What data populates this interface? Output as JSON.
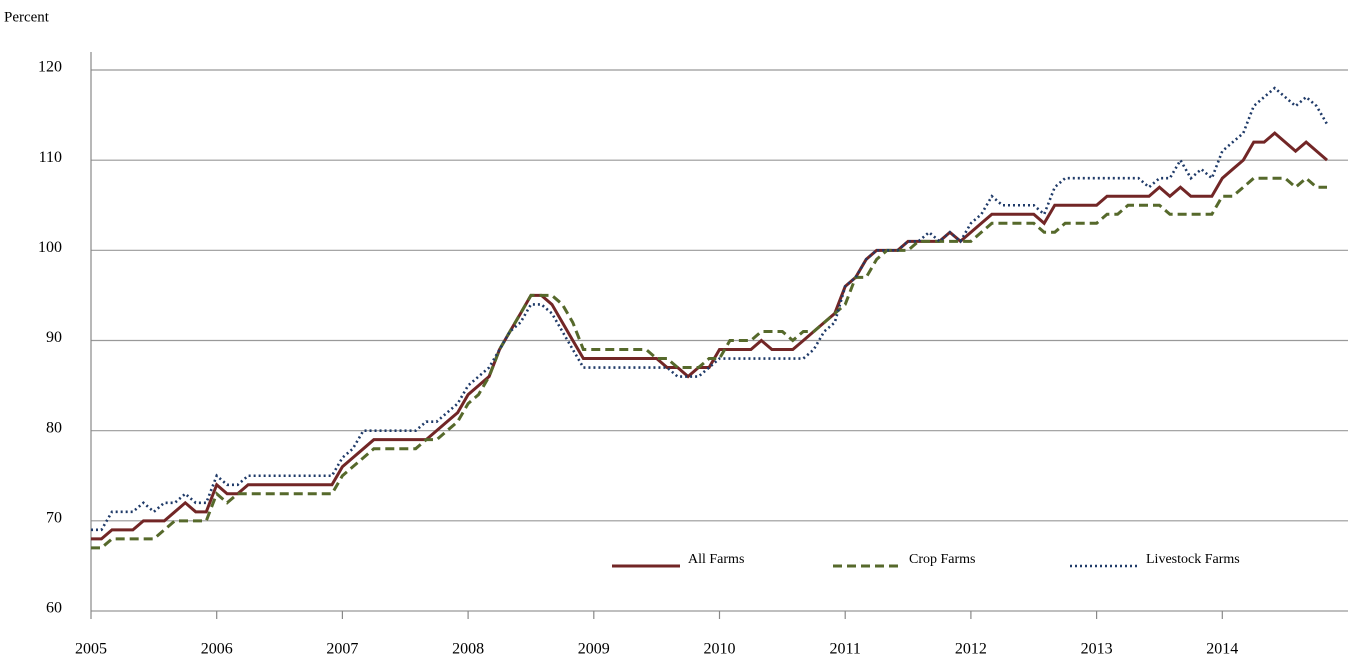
{
  "chart_data": {
    "type": "line",
    "y_label": "Percent",
    "x": [
      2005,
      2005.083,
      2005.167,
      2005.25,
      2005.333,
      2005.417,
      2005.5,
      2005.583,
      2005.667,
      2005.75,
      2005.833,
      2005.917,
      2006,
      2006.083,
      2006.167,
      2006.25,
      2006.333,
      2006.417,
      2006.5,
      2006.583,
      2006.667,
      2006.75,
      2006.833,
      2006.917,
      2007,
      2007.083,
      2007.167,
      2007.25,
      2007.333,
      2007.417,
      2007.5,
      2007.583,
      2007.667,
      2007.75,
      2007.833,
      2007.917,
      2008,
      2008.083,
      2008.167,
      2008.25,
      2008.333,
      2008.417,
      2008.5,
      2008.583,
      2008.667,
      2008.75,
      2008.833,
      2008.917,
      2009,
      2009.083,
      2009.167,
      2009.25,
      2009.333,
      2009.417,
      2009.5,
      2009.583,
      2009.667,
      2009.75,
      2009.833,
      2009.917,
      2010,
      2010.083,
      2010.167,
      2010.25,
      2010.333,
      2010.417,
      2010.5,
      2010.583,
      2010.667,
      2010.75,
      2010.833,
      2010.917,
      2011,
      2011.083,
      2011.167,
      2011.25,
      2011.333,
      2011.417,
      2011.5,
      2011.583,
      2011.667,
      2011.75,
      2011.833,
      2011.917,
      2012,
      2012.083,
      2012.167,
      2012.25,
      2012.333,
      2012.417,
      2012.5,
      2012.583,
      2012.667,
      2012.75,
      2012.833,
      2012.917,
      2013,
      2013.083,
      2013.167,
      2013.25,
      2013.333,
      2013.417,
      2013.5,
      2013.583,
      2013.667,
      2013.75,
      2013.833,
      2013.917,
      2014,
      2014.083,
      2014.167,
      2014.25,
      2014.333,
      2014.417,
      2014.5,
      2014.583,
      2014.667,
      2014.75,
      2014.833
    ],
    "series": [
      {
        "name": "All Farms",
        "color": "#722626",
        "style": "solid",
        "values": [
          68,
          68,
          69,
          69,
          69,
          70,
          70,
          70,
          71,
          72,
          71,
          71,
          74,
          73,
          73,
          74,
          74,
          74,
          74,
          74,
          74,
          74,
          74,
          74,
          76,
          77,
          78,
          79,
          79,
          79,
          79,
          79,
          79,
          80,
          81,
          82,
          84,
          85,
          86,
          89,
          91,
          93,
          95,
          95,
          94,
          92,
          90,
          88,
          88,
          88,
          88,
          88,
          88,
          88,
          88,
          87,
          87,
          86,
          87,
          87,
          89,
          89,
          89,
          89,
          90,
          89,
          89,
          89,
          90,
          91,
          92,
          93,
          96,
          97,
          99,
          100,
          100,
          100,
          101,
          101,
          101,
          101,
          102,
          101,
          102,
          103,
          104,
          104,
          104,
          104,
          104,
          103,
          105,
          105,
          105,
          105,
          105,
          106,
          106,
          106,
          106,
          106,
          107,
          106,
          107,
          106,
          106,
          106,
          108,
          109,
          110,
          112,
          112,
          113,
          112,
          111,
          112,
          111,
          110
        ]
      },
      {
        "name": "Crop Farms",
        "color": "#56692b",
        "style": "dashed",
        "values": [
          67,
          67,
          68,
          68,
          68,
          68,
          68,
          69,
          70,
          70,
          70,
          70,
          73,
          72,
          73,
          73,
          73,
          73,
          73,
          73,
          73,
          73,
          73,
          73,
          75,
          76,
          77,
          78,
          78,
          78,
          78,
          78,
          79,
          79,
          80,
          81,
          83,
          84,
          86,
          89,
          91,
          93,
          95,
          95,
          95,
          94,
          92,
          89,
          89,
          89,
          89,
          89,
          89,
          89,
          88,
          88,
          87,
          87,
          87,
          88,
          88,
          90,
          90,
          90,
          91,
          91,
          91,
          90,
          91,
          91,
          92,
          93,
          94,
          97,
          97,
          99,
          100,
          100,
          100,
          101,
          101,
          101,
          101,
          101,
          101,
          102,
          103,
          103,
          103,
          103,
          103,
          102,
          102,
          103,
          103,
          103,
          103,
          104,
          104,
          105,
          105,
          105,
          105,
          104,
          104,
          104,
          104,
          104,
          106,
          106,
          107,
          108,
          108,
          108,
          108,
          107,
          108,
          107,
          107
        ]
      },
      {
        "name": "Livestock Farms",
        "color": "#1f3a68",
        "style": "dotted",
        "values": [
          69,
          69,
          71,
          71,
          71,
          72,
          71,
          72,
          72,
          73,
          72,
          72,
          75,
          74,
          74,
          75,
          75,
          75,
          75,
          75,
          75,
          75,
          75,
          75,
          77,
          78,
          80,
          80,
          80,
          80,
          80,
          80,
          81,
          81,
          82,
          83,
          85,
          86,
          87,
          89,
          91,
          92,
          94,
          94,
          93,
          91,
          89,
          87,
          87,
          87,
          87,
          87,
          87,
          87,
          87,
          87,
          86,
          86,
          86,
          87,
          88,
          88,
          88,
          88,
          88,
          88,
          88,
          88,
          88,
          89,
          91,
          92,
          96,
          97,
          99,
          100,
          100,
          100,
          101,
          101,
          102,
          101,
          102,
          101,
          103,
          104,
          106,
          105,
          105,
          105,
          105,
          104,
          107,
          108,
          108,
          108,
          108,
          108,
          108,
          108,
          108,
          107,
          108,
          108,
          110,
          108,
          109,
          108,
          111,
          112,
          113,
          116,
          117,
          118,
          117,
          116,
          117,
          116,
          114
        ]
      }
    ],
    "xlim": [
      2005,
      2015
    ],
    "xticks": [
      2005,
      2006,
      2007,
      2008,
      2009,
      2010,
      2011,
      2012,
      2013,
      2014
    ],
    "ylim": [
      60,
      120
    ],
    "yticks": [
      60,
      70,
      80,
      90,
      100,
      110,
      120
    ],
    "grid": true,
    "legend": "bottom"
  }
}
